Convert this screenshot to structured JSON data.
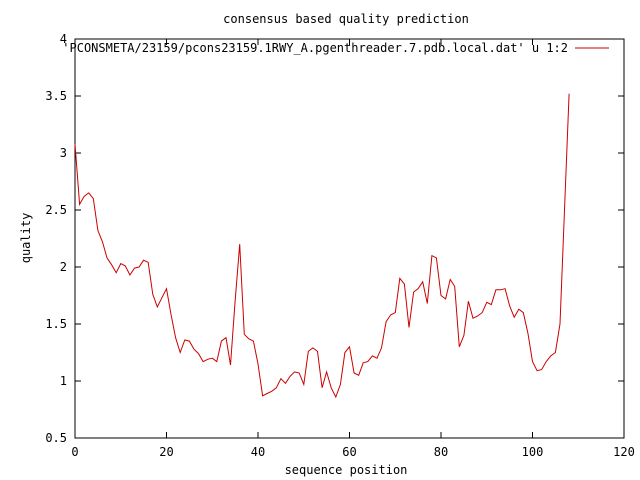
{
  "chart_data": {
    "type": "line",
    "title": "consensus based quality prediction",
    "xlabel": "sequence position",
    "ylabel": "quality",
    "xlim": [
      0,
      120
    ],
    "ylim": [
      0.5,
      4
    ],
    "xticks": [
      0,
      20,
      40,
      60,
      80,
      100,
      120
    ],
    "yticks": [
      0.5,
      1,
      1.5,
      2,
      2.5,
      3,
      3.5,
      4
    ],
    "xtick_labels": [
      "0",
      "20",
      "40",
      "60",
      "80",
      "100",
      "120"
    ],
    "ytick_labels": [
      "0.5",
      "1",
      "1.5",
      "2",
      "2.5",
      "3",
      "3.5",
      "4"
    ],
    "grid": false,
    "legend_position": "top-right",
    "series": [
      {
        "name": "'PCONSMETA/23159/pcons23159.1RWY_A.pgenthreader.7.pdb.local.dat' u 1:2",
        "color": "#cc0000",
        "x": [
          0,
          1,
          2,
          3,
          4,
          5,
          6,
          7,
          8,
          9,
          10,
          11,
          12,
          13,
          14,
          15,
          16,
          17,
          18,
          19,
          20,
          21,
          22,
          23,
          24,
          25,
          26,
          27,
          28,
          29,
          30,
          31,
          32,
          33,
          34,
          35,
          36,
          37,
          38,
          39,
          40,
          41,
          42,
          43,
          44,
          45,
          46,
          47,
          48,
          49,
          50,
          51,
          52,
          53,
          54,
          55,
          56,
          57,
          58,
          59,
          60,
          61,
          62,
          63,
          64,
          65,
          66,
          67,
          68,
          69,
          70,
          71,
          72,
          73,
          74,
          75,
          76,
          77,
          78,
          79,
          80,
          81,
          82,
          83,
          84,
          85,
          86,
          87,
          88,
          89,
          90,
          91,
          92,
          93,
          94,
          95,
          96,
          97,
          98,
          99,
          100,
          101,
          102,
          103,
          104,
          105,
          106,
          107,
          108
        ],
        "y": [
          3.08,
          2.55,
          2.62,
          2.65,
          2.6,
          2.32,
          2.22,
          2.08,
          2.02,
          1.95,
          2.03,
          2.01,
          1.93,
          1.99,
          2.0,
          2.06,
          2.04,
          1.76,
          1.65,
          1.73,
          1.81,
          1.58,
          1.38,
          1.25,
          1.36,
          1.35,
          1.28,
          1.24,
          1.17,
          1.19,
          1.2,
          1.17,
          1.35,
          1.38,
          1.14,
          1.7,
          2.2,
          1.41,
          1.37,
          1.35,
          1.15,
          0.87,
          0.89,
          0.91,
          0.94,
          1.02,
          0.98,
          1.04,
          1.08,
          1.07,
          0.97,
          1.26,
          1.29,
          1.26,
          0.94,
          1.08,
          0.94,
          0.86,
          0.97,
          1.25,
          1.3,
          1.07,
          1.05,
          1.16,
          1.17,
          1.22,
          1.2,
          1.29,
          1.52,
          1.58,
          1.6,
          1.9,
          1.85,
          1.47,
          1.78,
          1.81,
          1.87,
          1.68,
          2.1,
          2.08,
          1.75,
          1.72,
          1.89,
          1.83,
          1.3,
          1.4,
          1.7,
          1.55,
          1.57,
          1.6,
          1.69,
          1.67,
          1.8,
          1.8,
          1.81,
          1.66,
          1.56,
          1.63,
          1.6,
          1.42,
          1.17,
          1.09,
          1.1,
          1.17,
          1.22,
          1.25,
          1.5,
          2.5,
          3.52
        ]
      }
    ]
  }
}
